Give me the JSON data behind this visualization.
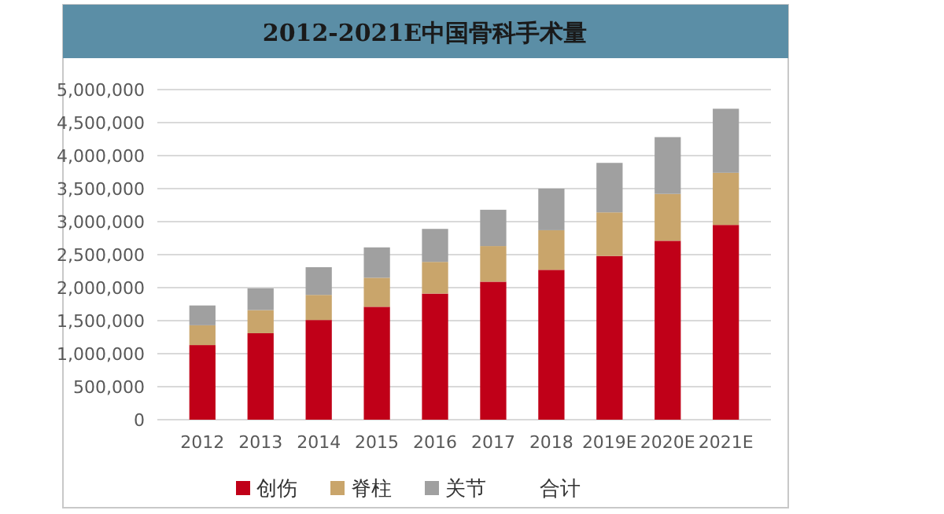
{
  "chart_data": {
    "type": "bar",
    "title": "2012-2021E中国骨科手术量",
    "stacked": true,
    "categories": [
      "2012",
      "2013",
      "2014",
      "2015",
      "2016",
      "2017",
      "2018",
      "2019E",
      "2020E",
      "2021E"
    ],
    "series": [
      {
        "name": "创伤",
        "color": "#c00018",
        "values": [
          1130000,
          1310000,
          1510000,
          1710000,
          1910000,
          2090000,
          2270000,
          2480000,
          2710000,
          2950000
        ]
      },
      {
        "name": "脊柱",
        "color": "#c9a56b",
        "values": [
          300000,
          350000,
          380000,
          440000,
          480000,
          540000,
          600000,
          660000,
          710000,
          790000
        ]
      },
      {
        "name": "关节",
        "color": "#a0a0a0",
        "values": [
          300000,
          330000,
          420000,
          460000,
          500000,
          550000,
          630000,
          750000,
          860000,
          970000
        ]
      },
      {
        "name": "合计",
        "values": [
          null,
          null,
          null,
          null,
          null,
          null,
          null,
          null,
          null,
          null
        ]
      }
    ],
    "ylim": [
      0,
      5000000
    ],
    "yticks": [
      {
        "value": 0,
        "label": "0"
      },
      {
        "value": 500000,
        "label": "500,000"
      },
      {
        "value": 1000000,
        "label": "1,000,000"
      },
      {
        "value": 1500000,
        "label": "1,500,000"
      },
      {
        "value": 2000000,
        "label": "2,000,000"
      },
      {
        "value": 2500000,
        "label": "2,500,000"
      },
      {
        "value": 3000000,
        "label": "3,000,000"
      },
      {
        "value": 3500000,
        "label": "3,500,000"
      },
      {
        "value": 4000000,
        "label": "4,000,000"
      },
      {
        "value": 4500000,
        "label": "4,500,000"
      },
      {
        "value": 5000000,
        "label": "5,000,000"
      }
    ],
    "grid": "y",
    "legend": "bottom"
  }
}
